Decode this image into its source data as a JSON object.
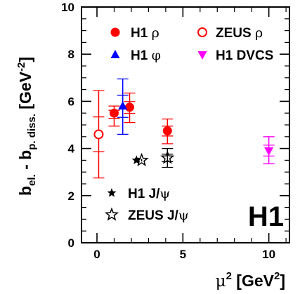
{
  "chart_data": {
    "type": "scatter",
    "title": "",
    "xlim": [
      -0.9,
      11.2
    ],
    "ylim": [
      0,
      10
    ],
    "xticks": [
      0,
      5,
      10
    ],
    "yticks": [
      0,
      2,
      4,
      6,
      8,
      10
    ],
    "xlabel": {
      "base": "μ",
      "sup1": "2",
      "mid": " [GeV",
      "sup2": "2",
      "end": "]"
    },
    "ylabel": {
      "base": "b",
      "sub1": "el.",
      "mid": " - b",
      "sub2": "p. diss.",
      "mid2": " [GeV",
      "sup": "-2",
      "end": "]"
    },
    "badge": "H1",
    "legend_placement": "top-right",
    "series": [
      {
        "name": "H1 ρ",
        "marker": "circle-filled",
        "color": "#ff0000",
        "points": [
          {
            "x": 1.0,
            "y": 5.5,
            "yerr_lo": 0.55,
            "yerr_hi": 0.3
          },
          {
            "x": 1.9,
            "y": 5.75,
            "yerr_lo": 0.65,
            "yerr_hi": 0.6
          },
          {
            "x": 4.1,
            "y": 4.75,
            "yerr_lo": 0.55,
            "yerr_hi": 0.5
          }
        ]
      },
      {
        "name": "ZEUS ρ",
        "marker": "circle-open",
        "color": "#ff0000",
        "points": [
          {
            "x": 0.1,
            "y": 4.6,
            "yerr_lo": 1.85,
            "yerr_hi": 1.85
          }
        ]
      },
      {
        "name": "H1 φ",
        "marker": "triangle-up",
        "color": "#0000ff",
        "points": [
          {
            "x": 1.5,
            "y": 5.8,
            "yerr_lo": 1.2,
            "yerr_hi": 1.15
          }
        ]
      },
      {
        "name": "H1 DVCS",
        "marker": "triangle-down",
        "color": "#ff00ff",
        "points": [
          {
            "x": 10.0,
            "y": 3.9,
            "yerr_lo": 0.55,
            "yerr_hi": 0.6
          }
        ]
      },
      {
        "name": "H1 J/ψ",
        "marker": "star-filled",
        "color": "#000000",
        "points": [
          {
            "x": 2.3,
            "y": 3.5,
            "yerr_lo": 0.05,
            "yerr_hi": 0.05
          }
        ]
      },
      {
        "name": "ZEUS J/ψ",
        "marker": "star-open",
        "color": "#000000",
        "points": [
          {
            "x": 2.6,
            "y": 3.5,
            "yerr_lo": 0.05,
            "yerr_hi": 0.05
          },
          {
            "x": 4.1,
            "y": 3.6,
            "yerr_lo": 0.4,
            "yerr_hi": 0.4
          }
        ]
      }
    ],
    "legend_top": [
      {
        "series": 0,
        "label_base": "H1 ",
        "label_symbol": "ρ"
      },
      {
        "series": 1,
        "label_base": "ZEUS ",
        "label_symbol": "ρ"
      },
      {
        "series": 2,
        "label_base": "H1 ",
        "label_symbol": "φ"
      },
      {
        "series": 3,
        "label_base": "H1 DVCS",
        "label_symbol": ""
      }
    ],
    "legend_bottom": [
      {
        "series": 4,
        "label_base": "H1 J/",
        "label_symbol": "ψ"
      },
      {
        "series": 5,
        "label_base": "ZEUS J/",
        "label_symbol": "ψ"
      }
    ]
  }
}
